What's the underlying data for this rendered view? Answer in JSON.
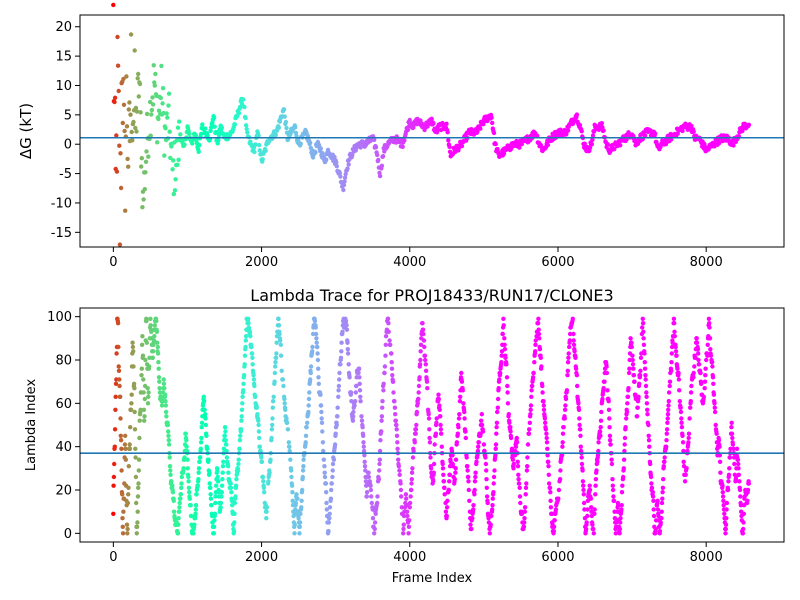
{
  "chart_data": [
    {
      "type": "scatter",
      "title": "",
      "xlabel": "",
      "ylabel": "ΔG (kT)",
      "xlim": [
        -450,
        9050
      ],
      "ylim": [
        -17.5,
        22
      ],
      "xticks": [
        0,
        2000,
        4000,
        6000,
        8000
      ],
      "yticks": [
        -15,
        -10,
        -5,
        0,
        5,
        10,
        15,
        20
      ],
      "hline": 1.1,
      "hline_color": "#1f77b4",
      "colormap": "rainbow",
      "trace": [
        [
          0,
          20
        ],
        [
          30,
          -10
        ],
        [
          60,
          12
        ],
        [
          90,
          -15
        ],
        [
          120,
          17
        ],
        [
          150,
          -7
        ],
        [
          180,
          8
        ],
        [
          210,
          -5
        ],
        [
          240,
          11
        ],
        [
          300,
          3
        ],
        [
          350,
          11
        ],
        [
          400,
          -10
        ],
        [
          450,
          0
        ],
        [
          500,
          6
        ],
        [
          550,
          11
        ],
        [
          600,
          4
        ],
        [
          650,
          9
        ],
        [
          700,
          1
        ],
        [
          750,
          4
        ],
        [
          800,
          -5
        ],
        [
          850,
          -3
        ],
        [
          900,
          2
        ],
        [
          950,
          -1
        ],
        [
          1000,
          3
        ],
        [
          1050,
          0
        ],
        [
          1100,
          2
        ],
        [
          1150,
          -1
        ],
        [
          1200,
          3
        ],
        [
          1300,
          1
        ],
        [
          1350,
          5
        ],
        [
          1400,
          0
        ],
        [
          1450,
          3
        ],
        [
          1500,
          1
        ],
        [
          1600,
          2
        ],
        [
          1650,
          4
        ],
        [
          1700,
          6
        ],
        [
          1750,
          8
        ],
        [
          1800,
          2
        ],
        [
          1850,
          0
        ],
        [
          1900,
          -1
        ],
        [
          1950,
          2
        ],
        [
          2000,
          -3
        ],
        [
          2050,
          -1
        ],
        [
          2100,
          1
        ],
        [
          2200,
          2
        ],
        [
          2300,
          6
        ],
        [
          2350,
          1
        ],
        [
          2450,
          3
        ],
        [
          2500,
          0
        ],
        [
          2600,
          2
        ],
        [
          2650,
          0
        ],
        [
          2700,
          -2
        ],
        [
          2750,
          0
        ],
        [
          2800,
          -1
        ],
        [
          2850,
          -3
        ],
        [
          2900,
          -1
        ],
        [
          3000,
          -3
        ],
        [
          3050,
          -5
        ],
        [
          3100,
          -7.5
        ],
        [
          3150,
          -4
        ],
        [
          3200,
          -2
        ],
        [
          3300,
          0
        ],
        [
          3400,
          0
        ],
        [
          3500,
          1
        ],
        [
          3550,
          -1
        ],
        [
          3600,
          -5
        ],
        [
          3650,
          -1
        ],
        [
          3700,
          0
        ],
        [
          3800,
          1
        ],
        [
          3900,
          0
        ],
        [
          3950,
          2
        ],
        [
          4000,
          4
        ],
        [
          4050,
          3
        ],
        [
          4100,
          4
        ],
        [
          4200,
          3
        ],
        [
          4300,
          4
        ],
        [
          4350,
          2
        ],
        [
          4400,
          3
        ],
        [
          4500,
          3
        ],
        [
          4550,
          -2
        ],
        [
          4600,
          -1
        ],
        [
          4700,
          0
        ],
        [
          4800,
          2
        ],
        [
          4900,
          2
        ],
        [
          5000,
          4
        ],
        [
          5100,
          5
        ],
        [
          5150,
          0
        ],
        [
          5200,
          -2
        ],
        [
          5300,
          -1
        ],
        [
          5400,
          0
        ],
        [
          5500,
          0
        ],
        [
          5600,
          1
        ],
        [
          5700,
          2
        ],
        [
          5750,
          0
        ],
        [
          5800,
          -1
        ],
        [
          5900,
          1
        ],
        [
          6000,
          2
        ],
        [
          6100,
          2
        ],
        [
          6200,
          4
        ],
        [
          6250,
          5
        ],
        [
          6300,
          3
        ],
        [
          6350,
          0
        ],
        [
          6400,
          -1
        ],
        [
          6450,
          0
        ],
        [
          6500,
          3
        ],
        [
          6600,
          3
        ],
        [
          6650,
          0
        ],
        [
          6700,
          -1
        ],
        [
          6800,
          0
        ],
        [
          6900,
          1
        ],
        [
          7000,
          2
        ],
        [
          7050,
          0
        ],
        [
          7100,
          1
        ],
        [
          7200,
          2
        ],
        [
          7300,
          2
        ],
        [
          7350,
          -1
        ],
        [
          7400,
          0
        ],
        [
          7500,
          1
        ],
        [
          7600,
          2
        ],
        [
          7700,
          3
        ],
        [
          7800,
          3
        ],
        [
          7850,
          1
        ],
        [
          7900,
          1
        ],
        [
          8000,
          -1
        ],
        [
          8100,
          0
        ],
        [
          8200,
          1
        ],
        [
          8300,
          1
        ],
        [
          8350,
          0
        ],
        [
          8400,
          1
        ],
        [
          8500,
          3
        ],
        [
          8580,
          3.5
        ]
      ]
    },
    {
      "type": "scatter",
      "title": "Lambda Trace for PROJ18433/RUN17/CLONE3",
      "xlabel": "Frame Index",
      "ylabel": "Lambda Index",
      "xlim": [
        -450,
        9050
      ],
      "ylim": [
        -4,
        104
      ],
      "xticks": [
        0,
        2000,
        4000,
        6000,
        8000
      ],
      "yticks": [
        0,
        20,
        40,
        60,
        80,
        100
      ],
      "hline": 37,
      "hline_color": "#1f77b4",
      "colormap": "rainbow",
      "x_range": [
        0,
        8580
      ],
      "lambda_range": [
        0,
        99
      ]
    }
  ]
}
